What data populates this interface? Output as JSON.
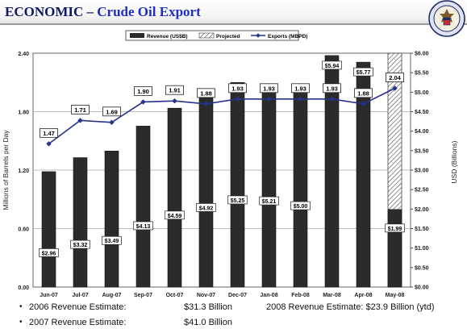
{
  "header": {
    "title_main": "ECONOMIC",
    "title_sep": " – ",
    "title_sub": "Crude Oil Export",
    "seal_icon": "state-department-seal-icon"
  },
  "chart_data": {
    "type": "bar+line",
    "categories": [
      "Jun-07",
      "Jul-07",
      "Aug-07",
      "Sep-07",
      "Oct-07",
      "Nov-07",
      "Dec-07",
      "Jan-08",
      "Feb-08",
      "Mar-08",
      "Apr-08",
      "May-08"
    ],
    "left_axis": {
      "label": "Millions of Barrels per Day",
      "range": [
        0,
        2.4
      ],
      "ticks": [
        "0.00",
        "0.60",
        "1.20",
        "1.80",
        "2.40"
      ]
    },
    "right_axis": {
      "label": "USD (Billions)",
      "range": [
        0,
        6
      ],
      "ticks": [
        "$0.00",
        "$0.50",
        "$1.00",
        "$1.50",
        "$2.00",
        "$2.50",
        "$3.00",
        "$3.50",
        "$4.00",
        "$4.50",
        "$5.00",
        "$5.50",
        "$6.00"
      ]
    },
    "legend": [
      "Revenue (US$B)",
      "Projected",
      "Exports (MBPD)"
    ],
    "legend_position": "top",
    "grid": true,
    "series": [
      {
        "name": "Revenue (US$B)",
        "axis": "right",
        "kind": "bar",
        "color": "#2b2b2b",
        "values": [
          2.96,
          3.32,
          3.49,
          4.13,
          4.59,
          4.92,
          5.25,
          5.21,
          5.0,
          5.94,
          5.77,
          1.99
        ],
        "labels": [
          "$2.96",
          "$3.32",
          "$3.49",
          "$4.13",
          "$4.59",
          "$4.92",
          "$5.25",
          "$5.21",
          "$5.00",
          "$5.94",
          "$5.77",
          "$1.99"
        ]
      },
      {
        "name": "Projected",
        "axis": "right",
        "kind": "bar-hatched",
        "color": "#888888",
        "values": [
          null,
          null,
          null,
          null,
          null,
          null,
          null,
          null,
          null,
          null,
          null,
          6.0
        ]
      },
      {
        "name": "Exports (MBPD)",
        "axis": "left",
        "kind": "line",
        "color": "#26328c",
        "values": [
          1.47,
          1.71,
          1.69,
          1.9,
          1.91,
          1.88,
          1.93,
          1.93,
          1.93,
          1.93,
          1.88,
          2.04
        ],
        "labels": [
          "1.47",
          "1.71",
          "1.69",
          "1.90",
          "1.91",
          "1.88",
          "1.93",
          "1.93",
          "1.93",
          "1.93",
          "1.88",
          "2.04"
        ]
      }
    ]
  },
  "notes": {
    "row1_label": "2006 Revenue Estimate:",
    "row1_value": "$31.3 Billion",
    "row1_right": "2008 Revenue Estimate:  $23.9 Billion (ytd)",
    "row2_label": "2007 Revenue Estimate:",
    "row2_value": "$41.0  Billion"
  }
}
